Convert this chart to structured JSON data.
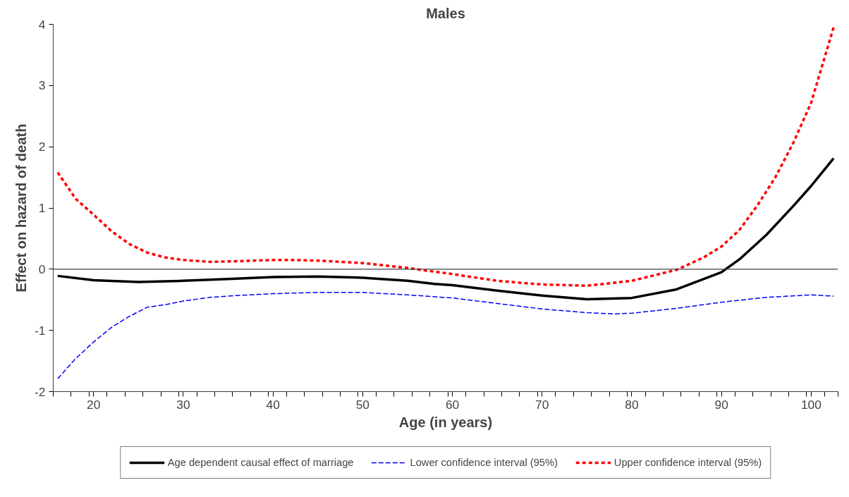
{
  "chart_data": {
    "type": "line",
    "title": "Males",
    "xlabel": "Age (in years)",
    "ylabel": "Effect on hazard of death",
    "xlim": [
      15.5,
      103
    ],
    "ylim": [
      -2,
      4
    ],
    "xticks": [
      20,
      30,
      40,
      50,
      60,
      70,
      80,
      90,
      100,
      {
        "value": 15.5,
        "label": null
      },
      {
        "value": 17.5,
        "label": null
      },
      {
        "value": 19.5,
        "label": null
      },
      {
        "value": 21.5,
        "label": null
      },
      {
        "value": 23.5,
        "label": null
      },
      {
        "value": 25.5,
        "label": null
      },
      {
        "value": 27.5,
        "label": null
      },
      {
        "value": 29.5,
        "label": null
      },
      {
        "value": 31.5,
        "label": null
      },
      {
        "value": 33.5,
        "label": null
      },
      {
        "value": 35.5,
        "label": null
      },
      {
        "value": 37.5,
        "label": null
      },
      {
        "value": 39.5,
        "label": null
      },
      {
        "value": 41.5,
        "label": null
      },
      {
        "value": 43.5,
        "label": null
      },
      {
        "value": 45.5,
        "label": null
      },
      {
        "value": 47.5,
        "label": null
      },
      {
        "value": 49.5,
        "label": null
      },
      {
        "value": 51.5,
        "label": null
      },
      {
        "value": 53.5,
        "label": null
      },
      {
        "value": 55.5,
        "label": null
      },
      {
        "value": 57.5,
        "label": null
      },
      {
        "value": 59.5,
        "label": null
      },
      {
        "value": 61.5,
        "label": null
      },
      {
        "value": 63.5,
        "label": null
      },
      {
        "value": 65.5,
        "label": null
      },
      {
        "value": 67.5,
        "label": null
      },
      {
        "value": 69.5,
        "label": null
      },
      {
        "value": 71.5,
        "label": null
      },
      {
        "value": 73.5,
        "label": null
      },
      {
        "value": 75.5,
        "label": null
      },
      {
        "value": 77.5,
        "label": null
      },
      {
        "value": 79.5,
        "label": null
      },
      {
        "value": 81.5,
        "label": null
      },
      {
        "value": 83.5,
        "label": null
      },
      {
        "value": 85.5,
        "label": null
      },
      {
        "value": 87.5,
        "label": null
      },
      {
        "value": 89.5,
        "label": null
      },
      {
        "value": 91.5,
        "label": null
      },
      {
        "value": 93.5,
        "label": null
      },
      {
        "value": 95.5,
        "label": null
      },
      {
        "value": 97.5,
        "label": null
      },
      {
        "value": 99.5,
        "label": null
      },
      {
        "value": 101.5,
        "label": null
      },
      {
        "value": 103,
        "label": null
      }
    ],
    "yticks": [
      -2,
      -1,
      0,
      1,
      2,
      3,
      4
    ],
    "grid": false,
    "legend": "bottom",
    "ref_lines": [
      {
        "axis": "y",
        "value": 0,
        "color": "#404040"
      }
    ],
    "series": [
      {
        "name": "Age dependent causal effect of marriage",
        "color": "#000000",
        "line_style": "solid",
        "x": [
          16,
          20,
          25,
          30,
          35,
          40,
          45,
          50,
          55,
          58,
          60,
          65,
          70,
          75,
          80,
          85,
          90,
          92,
          95,
          98,
          100,
          102.5
        ],
        "values": [
          -0.11,
          -0.18,
          -0.21,
          -0.19,
          -0.16,
          -0.13,
          -0.12,
          -0.14,
          -0.19,
          -0.24,
          -0.26,
          -0.35,
          -0.43,
          -0.49,
          -0.47,
          -0.33,
          -0.05,
          0.16,
          0.56,
          1.03,
          1.36,
          1.81
        ]
      },
      {
        "name": "Lower confidence interval (95%)",
        "color": "#0000ff",
        "line_style": "dashed",
        "x": [
          16,
          18,
          20,
          22,
          24,
          26,
          28,
          30,
          33,
          36,
          40,
          45,
          50,
          55,
          60,
          65,
          70,
          75,
          78,
          80,
          85,
          90,
          95,
          100,
          102.5
        ],
        "values": [
          -1.79,
          -1.46,
          -1.19,
          -0.95,
          -0.77,
          -0.62,
          -0.58,
          -0.52,
          -0.46,
          -0.43,
          -0.4,
          -0.38,
          -0.38,
          -0.42,
          -0.47,
          -0.56,
          -0.65,
          -0.71,
          -0.73,
          -0.72,
          -0.64,
          -0.54,
          -0.46,
          -0.42,
          -0.44
        ]
      },
      {
        "name": "Upper confidence interval (95%)",
        "color": "#ff0000",
        "line_style": "dotted",
        "x": [
          16,
          18,
          20,
          22,
          24,
          26,
          28,
          30,
          33,
          36,
          40,
          42,
          45,
          50,
          55,
          60,
          65,
          70,
          75,
          80,
          85,
          88,
          90,
          92,
          94,
          96,
          98,
          100,
          102.5
        ],
        "values": [
          1.58,
          1.15,
          0.89,
          0.62,
          0.41,
          0.27,
          0.19,
          0.15,
          0.12,
          0.13,
          0.15,
          0.15,
          0.14,
          0.1,
          0.02,
          -0.08,
          -0.19,
          -0.25,
          -0.27,
          -0.19,
          -0.01,
          0.19,
          0.37,
          0.64,
          1.04,
          1.5,
          2.06,
          2.72,
          3.95
        ]
      }
    ]
  }
}
